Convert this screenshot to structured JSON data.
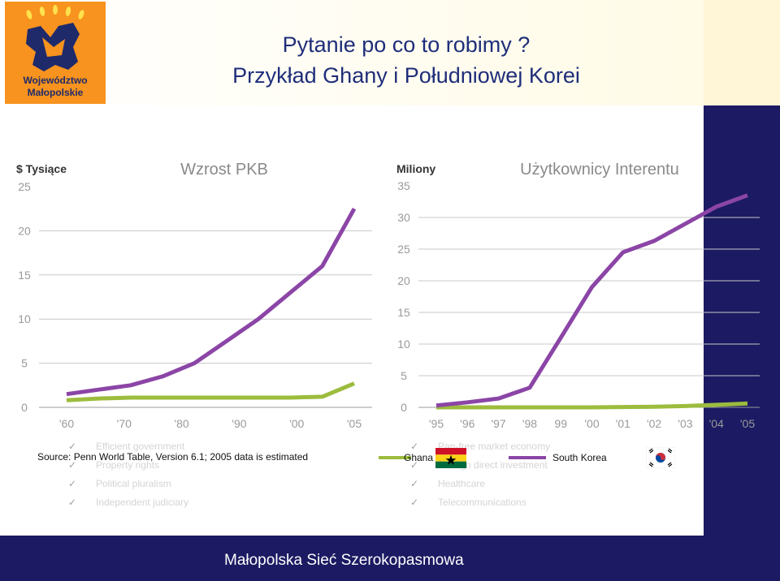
{
  "header": {
    "logo_line1": "Województwo",
    "logo_line2": "Małopolskie",
    "title_line1": "Pytanie po co to robimy ?",
    "title_line2": "Przykład Ghany i Południowej Korei"
  },
  "chart_data": [
    {
      "type": "line",
      "title": "Wzrost PKB",
      "ylabel": "$ Tysiące",
      "categories": [
        "'60",
        "'70",
        "'80",
        "'90",
        "'00",
        "'05"
      ],
      "yticks": [
        "0",
        "5",
        "10",
        "15",
        "20",
        "25"
      ],
      "ylim": [
        0,
        25
      ],
      "x": [
        1960,
        1965,
        1970,
        1975,
        1980,
        1985,
        1990,
        1995,
        2000,
        2005
      ],
      "series": [
        {
          "name": "South Korea",
          "color": "#8b45a6",
          "values": [
            1.5,
            2.0,
            2.5,
            3.5,
            5.0,
            7.5,
            10.0,
            13.0,
            16.0,
            22.5
          ]
        },
        {
          "name": "Ghana",
          "color": "#9cbc3d",
          "values": [
            0.8,
            1.0,
            1.1,
            1.1,
            1.1,
            1.1,
            1.1,
            1.1,
            1.2,
            2.7
          ]
        }
      ]
    },
    {
      "type": "line",
      "title": "Użytkownicy Interentu",
      "ylabel": "Miliony",
      "categories": [
        "'95",
        "'96",
        "'97",
        "'98",
        "99",
        "'00",
        "'01",
        "'02",
        "'03",
        "'04",
        "'05"
      ],
      "yticks": [
        "0",
        "5",
        "10",
        "15",
        "20",
        "25",
        "30",
        "35"
      ],
      "ylim": [
        0,
        35
      ],
      "x": [
        1995,
        1996,
        1997,
        1998,
        1999,
        2000,
        2001,
        2002,
        2003,
        2004,
        2005
      ],
      "series": [
        {
          "name": "South Korea",
          "color": "#8b45a6",
          "values": [
            0.3,
            0.8,
            1.4,
            3.1,
            11.0,
            19.0,
            24.5,
            26.3,
            29.0,
            31.7,
            33.5
          ]
        },
        {
          "name": "Ghana",
          "color": "#9cbc3d",
          "values": [
            0.0,
            0.0,
            0.0,
            0.0,
            0.0,
            0.0,
            0.05,
            0.1,
            0.2,
            0.4,
            0.6
          ]
        }
      ]
    }
  ],
  "source": "Source: Penn World Table, Version 6.1; 2005 data is estimated",
  "legend": {
    "ghana": "Ghana",
    "south_korea": "South Korea"
  },
  "background_items": {
    "left": [
      "Efficient government",
      "Property rights",
      "Political pluralism",
      "Independent judiciary"
    ],
    "right": [
      "Pan-free market economy",
      "Foreign direct investment",
      "Healthcare",
      "Telecommunications"
    ]
  },
  "footer": {
    "text": "Małopolska Sieć Szerokopasmowa"
  }
}
